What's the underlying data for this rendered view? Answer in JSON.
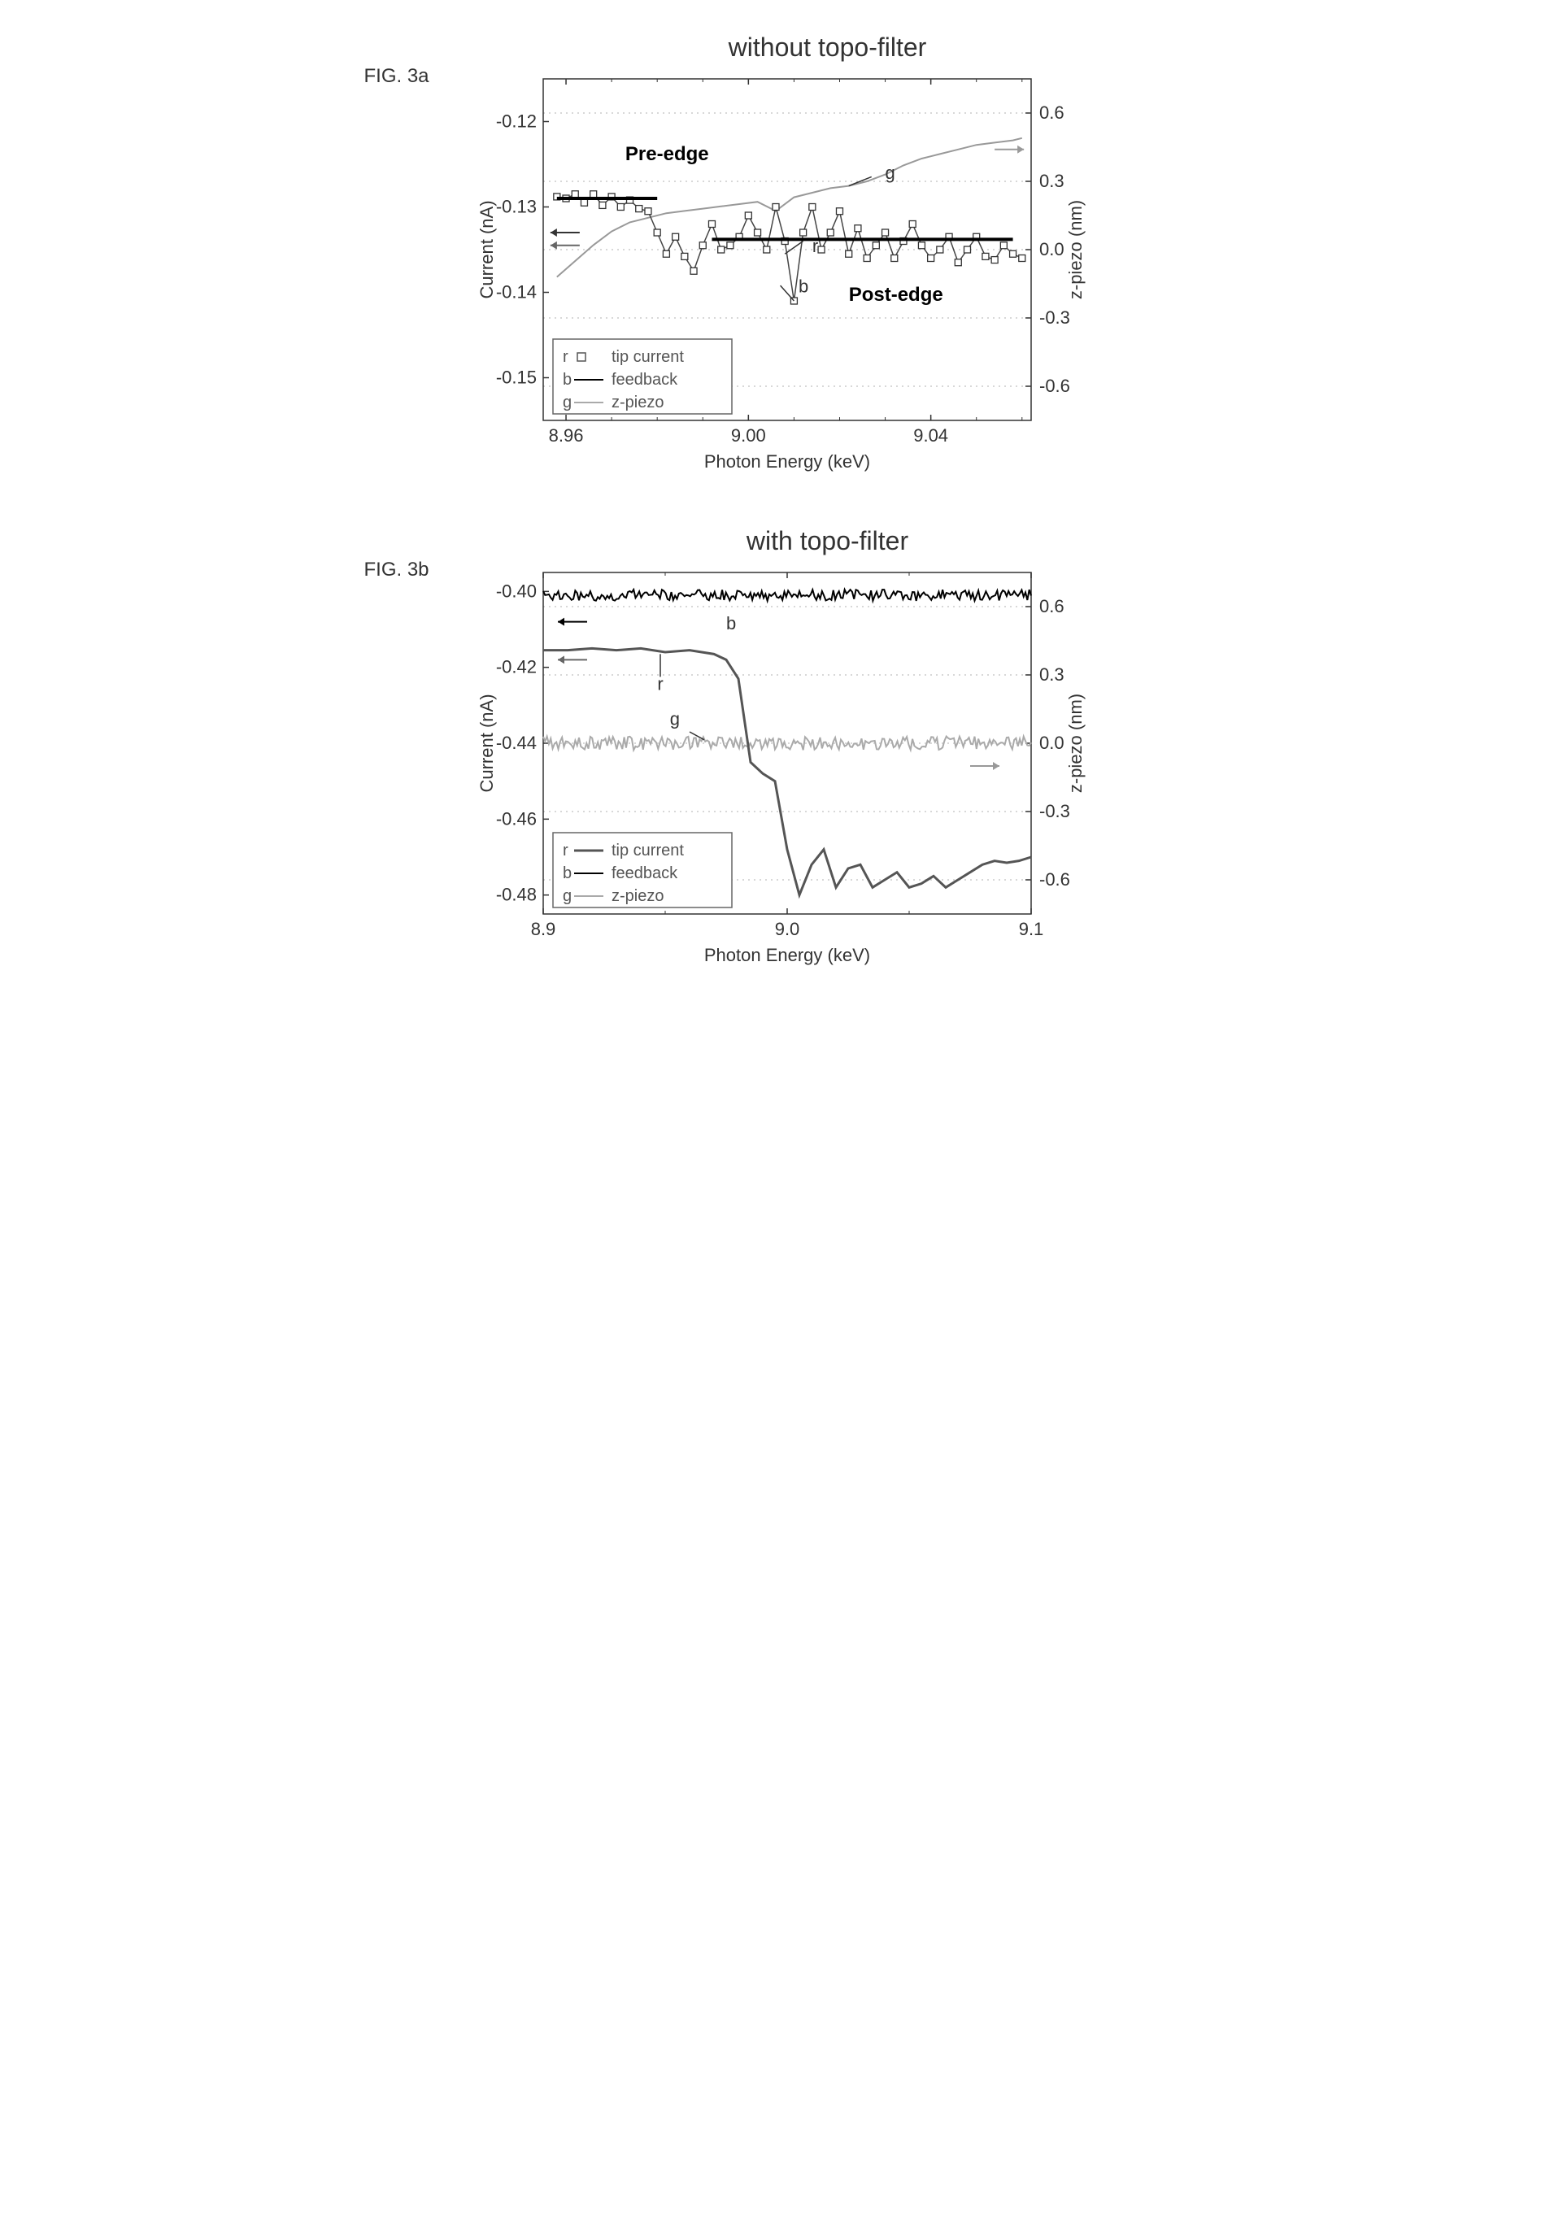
{
  "fig_a": {
    "label": "FIG. 3a",
    "title": "without topo-filter",
    "type": "line+scatter",
    "x_axis": {
      "label": "Photon Energy (keV)",
      "min": 8.955,
      "max": 9.062,
      "ticks": [
        8.96,
        9.0,
        9.04
      ]
    },
    "y_left": {
      "label": "Current (nA)",
      "min": -0.155,
      "max": -0.115,
      "ticks": [
        -0.12,
        -0.13,
        -0.14,
        -0.15
      ]
    },
    "y_right": {
      "label": "z-piezo (nm)",
      "min": -0.75,
      "max": 0.75,
      "ticks": [
        -0.6,
        -0.3,
        0.0,
        0.3,
        0.6
      ]
    },
    "grid_color": "#cccccc",
    "tip_current": {
      "color": "#444444",
      "marker_edge": "#333333",
      "marker_fill": "#ffffff",
      "x": [
        8.958,
        8.96,
        8.962,
        8.964,
        8.966,
        8.968,
        8.97,
        8.972,
        8.974,
        8.976,
        8.978,
        8.98,
        8.982,
        8.984,
        8.986,
        8.988,
        8.99,
        8.992,
        8.994,
        8.996,
        8.998,
        9.0,
        9.002,
        9.004,
        9.006,
        9.008,
        9.01,
        9.012,
        9.014,
        9.016,
        9.018,
        9.02,
        9.022,
        9.024,
        9.026,
        9.028,
        9.03,
        9.032,
        9.034,
        9.036,
        9.038,
        9.04,
        9.042,
        9.044,
        9.046,
        9.048,
        9.05,
        9.052,
        9.054,
        9.056,
        9.058,
        9.06
      ],
      "y": [
        -0.1288,
        -0.129,
        -0.1285,
        -0.1295,
        -0.1285,
        -0.1298,
        -0.1288,
        -0.13,
        -0.1292,
        -0.1302,
        -0.1305,
        -0.133,
        -0.1355,
        -0.1335,
        -0.1358,
        -0.1375,
        -0.1345,
        -0.132,
        -0.135,
        -0.1345,
        -0.1335,
        -0.131,
        -0.133,
        -0.135,
        -0.13,
        -0.134,
        -0.141,
        -0.133,
        -0.13,
        -0.135,
        -0.133,
        -0.1305,
        -0.1355,
        -0.1325,
        -0.136,
        -0.1345,
        -0.133,
        -0.136,
        -0.134,
        -0.132,
        -0.1345,
        -0.136,
        -0.135,
        -0.1335,
        -0.1365,
        -0.135,
        -0.1335,
        -0.1358,
        -0.1362,
        -0.1345,
        -0.1355,
        -0.136
      ]
    },
    "feedback": {
      "color": "#000000",
      "width": 4,
      "segments": [
        {
          "x": [
            8.958,
            8.98
          ],
          "y": [
            -0.129,
            -0.129
          ]
        },
        {
          "x": [
            8.992,
            9.058
          ],
          "y": [
            -0.1338,
            -0.1338
          ]
        }
      ]
    },
    "z_piezo": {
      "color": "#999999",
      "width": 2,
      "x": [
        8.958,
        8.962,
        8.966,
        8.97,
        8.974,
        8.978,
        8.982,
        8.986,
        8.99,
        8.994,
        8.998,
        9.002,
        9.006,
        9.01,
        9.014,
        9.018,
        9.022,
        9.026,
        9.03,
        9.034,
        9.038,
        9.042,
        9.046,
        9.05,
        9.054,
        9.058,
        9.06
      ],
      "y": [
        -0.12,
        -0.05,
        0.02,
        0.08,
        0.12,
        0.14,
        0.16,
        0.17,
        0.18,
        0.19,
        0.2,
        0.21,
        0.17,
        0.23,
        0.25,
        0.27,
        0.28,
        0.3,
        0.33,
        0.37,
        0.4,
        0.42,
        0.44,
        0.46,
        0.47,
        0.48,
        0.49
      ]
    },
    "annotations": {
      "pre_edge": "Pre-edge",
      "post_edge": "Post-edge",
      "r": "r",
      "b": "b",
      "g": "g"
    },
    "legend": {
      "items": [
        {
          "key": "r",
          "marker": "square",
          "label": "tip current"
        },
        {
          "key": "b",
          "marker": "line-black",
          "label": "feedback"
        },
        {
          "key": "g",
          "marker": "line-gray",
          "label": "z-piezo"
        }
      ]
    }
  },
  "fig_b": {
    "label": "FIG. 3b",
    "title": "with topo-filter",
    "type": "line",
    "x_axis": {
      "label": "Photon Energy (keV)",
      "min": 8.9,
      "max": 9.1,
      "ticks": [
        8.9,
        9.0,
        9.1
      ]
    },
    "y_left": {
      "label": "Current (nA)",
      "min": -0.485,
      "max": -0.395,
      "ticks": [
        -0.4,
        -0.42,
        -0.44,
        -0.46,
        -0.48
      ]
    },
    "y_right": {
      "label": "z-piezo (nm)",
      "min": -0.75,
      "max": 0.75,
      "ticks": [
        -0.6,
        -0.3,
        0.0,
        0.3,
        0.6
      ]
    },
    "grid_color": "#cccccc",
    "feedback": {
      "color": "#000000",
      "width": 2,
      "baseline": -0.401,
      "noise": 0.0015
    },
    "tip_current": {
      "color": "#555555",
      "width": 3,
      "x": [
        8.9,
        8.91,
        8.92,
        8.93,
        8.94,
        8.95,
        8.96,
        8.97,
        8.975,
        8.98,
        8.985,
        8.99,
        8.995,
        9.0,
        9.005,
        9.01,
        9.015,
        9.02,
        9.025,
        9.03,
        9.035,
        9.04,
        9.045,
        9.05,
        9.055,
        9.06,
        9.065,
        9.07,
        9.075,
        9.08,
        9.085,
        9.09,
        9.095,
        9.1
      ],
      "y": [
        -0.4155,
        -0.4155,
        -0.415,
        -0.4155,
        -0.415,
        -0.416,
        -0.4155,
        -0.4165,
        -0.418,
        -0.423,
        -0.445,
        -0.448,
        -0.45,
        -0.468,
        -0.48,
        -0.472,
        -0.468,
        -0.478,
        -0.473,
        -0.472,
        -0.478,
        -0.476,
        -0.474,
        -0.478,
        -0.477,
        -0.475,
        -0.478,
        -0.476,
        -0.474,
        -0.472,
        -0.471,
        -0.4715,
        -0.471,
        -0.47
      ]
    },
    "z_piezo": {
      "color": "#aaaaaa",
      "width": 2,
      "baseline": 0.0,
      "noise": 0.03
    },
    "annotations": {
      "r": "r",
      "b": "b",
      "g": "g"
    },
    "legend": {
      "items": [
        {
          "key": "r",
          "marker": "line-dark",
          "label": "tip current"
        },
        {
          "key": "b",
          "marker": "line-black",
          "label": "feedback"
        },
        {
          "key": "g",
          "marker": "line-gray",
          "label": "z-piezo"
        }
      ]
    }
  }
}
